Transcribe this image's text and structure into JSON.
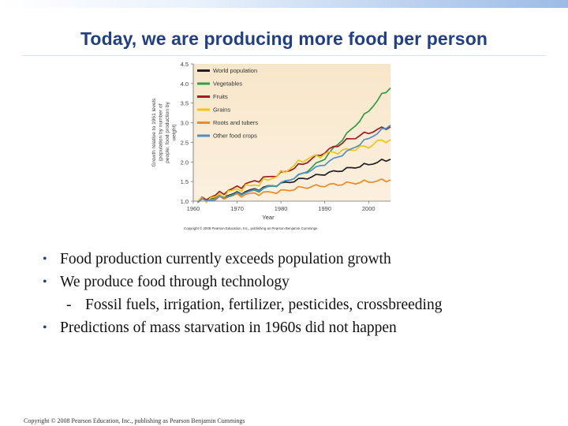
{
  "slide": {
    "title": "Today, we are producing more food per person",
    "bullets": [
      "Food production currently exceeds population growth",
      "We produce food through technology"
    ],
    "sub_bullet": "Fossil fuels, irrigation, fertilizer, pesticides, crossbreeding",
    "bullet_last": "Predictions of mass starvation in 1960s did not happen",
    "bullet_symbol": "•",
    "dash_symbol": "-",
    "footer": "Copyright © 2008 Pearson Education, Inc., publishing as Pearson Benjamin Cummings"
  },
  "chart_data": {
    "type": "line",
    "title": "",
    "xlabel": "Year",
    "ylabel": "Growth relative to 1961 levels (population by number of people; food production by weight)",
    "xlim": [
      1960,
      2005
    ],
    "ylim": [
      1.0,
      4.5
    ],
    "xticks": [
      1960,
      1970,
      1980,
      1990,
      2000
    ],
    "yticks": [
      "1.0",
      "1.5",
      "2.0",
      "2.5",
      "3.0",
      "3.5",
      "4.0",
      "4.5"
    ],
    "legend_position": "top-left",
    "credit": "Copyright © 2008 Pearson Education, Inc., publishing as Pearson Benjamin Cummings",
    "x": [
      1961,
      1965,
      1970,
      1975,
      1980,
      1985,
      1990,
      1995,
      2000,
      2003,
      2005
    ],
    "series": [
      {
        "name": "World population",
        "color": "#231f20",
        "values": [
          1.0,
          1.09,
          1.2,
          1.32,
          1.44,
          1.57,
          1.7,
          1.82,
          1.94,
          2.02,
          2.08
        ]
      },
      {
        "name": "Vegetables",
        "color": "#2e9e48",
        "values": [
          1.0,
          1.08,
          1.18,
          1.28,
          1.45,
          1.7,
          2.1,
          2.7,
          3.3,
          3.7,
          3.9
        ]
      },
      {
        "name": "Fruits",
        "color": "#9e1c24",
        "values": [
          1.0,
          1.15,
          1.35,
          1.55,
          1.7,
          1.95,
          2.25,
          2.55,
          2.75,
          2.85,
          2.9
        ]
      },
      {
        "name": "Grains",
        "color": "#f3c417",
        "values": [
          1.0,
          1.1,
          1.3,
          1.45,
          1.7,
          2.05,
          2.2,
          2.3,
          2.4,
          2.55,
          2.55
        ]
      },
      {
        "name": "Roots and tubers",
        "color": "#ef8a25",
        "values": [
          1.0,
          1.06,
          1.15,
          1.2,
          1.25,
          1.35,
          1.4,
          1.45,
          1.5,
          1.52,
          1.55
        ]
      },
      {
        "name": "Other food crops",
        "color": "#4f8fc7",
        "values": [
          1.0,
          1.05,
          1.18,
          1.3,
          1.45,
          1.7,
          1.95,
          2.25,
          2.6,
          2.8,
          2.95
        ]
      }
    ]
  }
}
